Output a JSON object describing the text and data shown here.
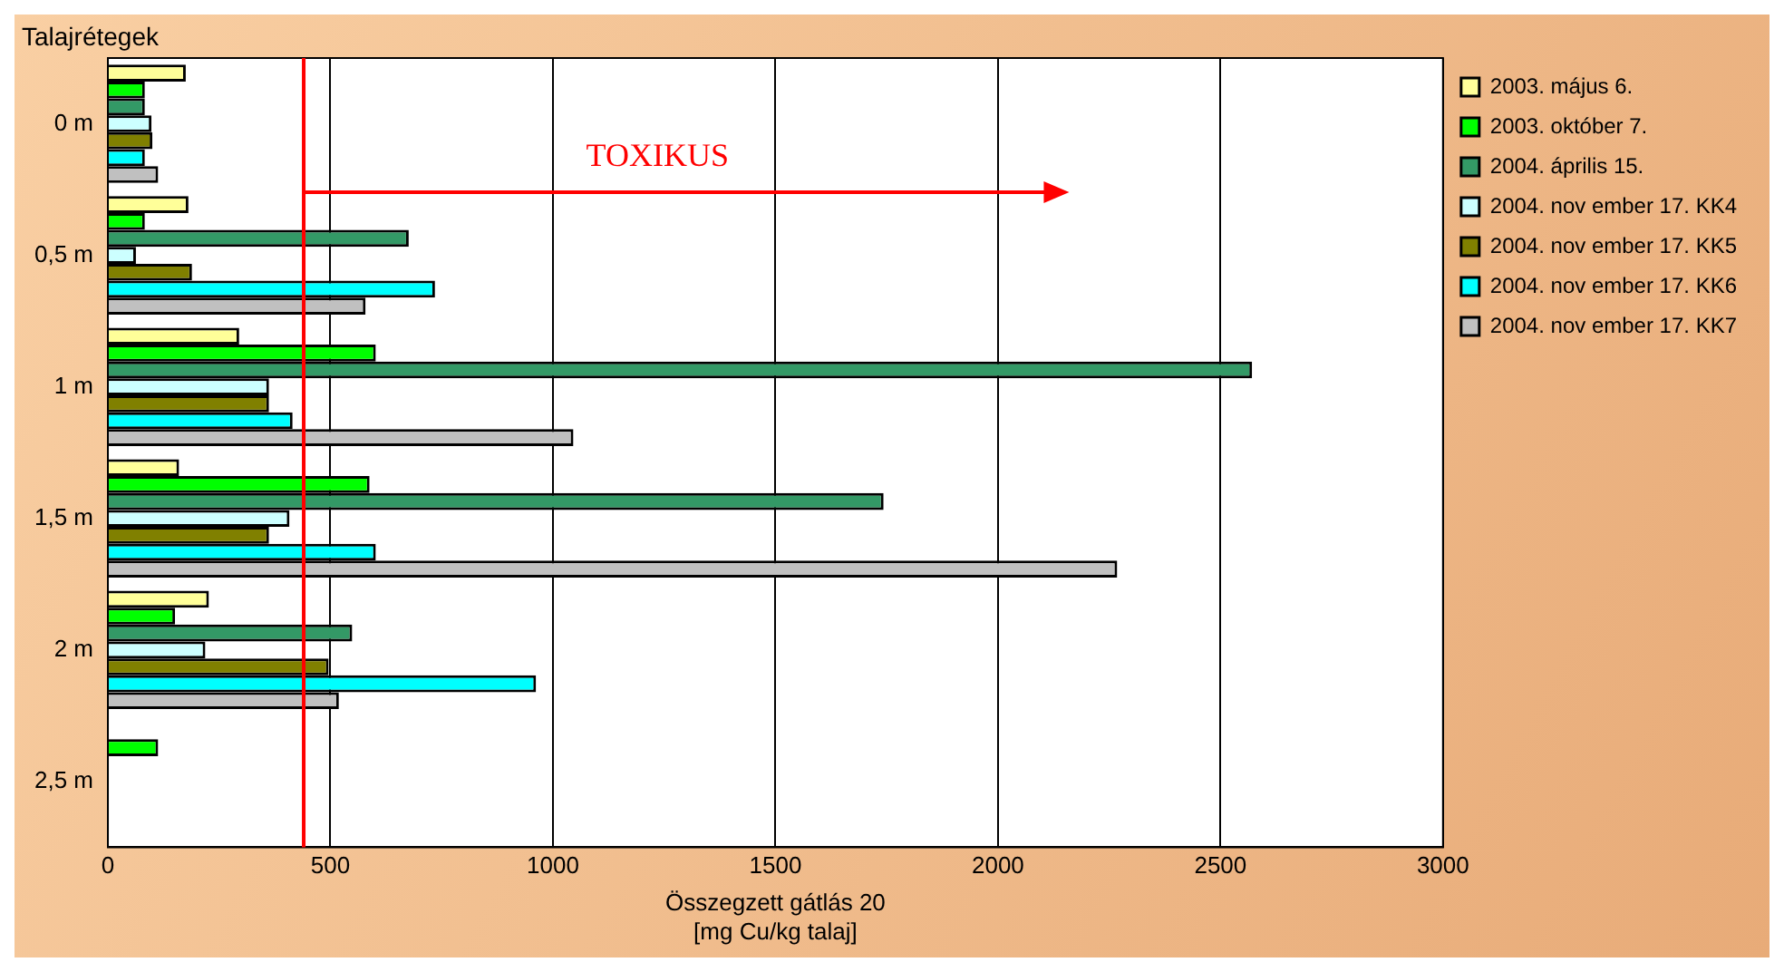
{
  "chart_data": {
    "type": "bar",
    "orientation": "horizontal",
    "ylabel": "Talajrétegek",
    "xlabel": "Összegzett gátlás 20\n[mg Cu/kg talaj]",
    "categories": [
      "0 m",
      "0,5 m",
      "1 m",
      "1,5 m",
      "2 m",
      "2,5 m"
    ],
    "series": [
      {
        "name": "2003. május 6.",
        "color": "#ffff99",
        "values": [
          175,
          181,
          295,
          160,
          227,
          null
        ]
      },
      {
        "name": "2003. október 7.",
        "color": "#00ff00",
        "values": [
          83,
          83,
          602,
          588,
          151,
          113
        ]
      },
      {
        "name": "2004. április 15.",
        "color": "#339966",
        "values": [
          83,
          676,
          2571,
          1743,
          549,
          null
        ]
      },
      {
        "name": "2004. nov ember 17. KK4",
        "color": "#ccffff",
        "values": [
          98,
          63,
          362,
          408,
          219,
          null
        ]
      },
      {
        "name": "2004. nov ember 17. KK5",
        "color": "#808000",
        "values": [
          100,
          189,
          362,
          362,
          496,
          null
        ]
      },
      {
        "name": "2004. nov ember 17. KK6",
        "color": "#00ffff",
        "values": [
          83,
          735,
          415,
          602,
          962,
          null
        ]
      },
      {
        "name": "2004. nov ember 17. KK7",
        "color": "#c0c0c0",
        "values": [
          113,
          579,
          1046,
          2268,
          519,
          null
        ]
      }
    ],
    "xlim": [
      0,
      3000
    ],
    "xticks": [
      0,
      500,
      1000,
      1500,
      2000,
      2500,
      3000
    ],
    "grid": "x",
    "legend": "right",
    "ref_lines": [
      {
        "axis": "x",
        "value": 440,
        "label": "TOXIKUS",
        "color": "#ff0000"
      }
    ]
  }
}
